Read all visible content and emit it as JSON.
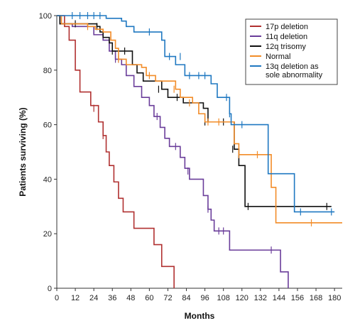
{
  "chart_data": {
    "type": "line",
    "xlabel": "Months",
    "ylabel": "Patients surviving (%)",
    "xlim": [
      0,
      180
    ],
    "ylim": [
      0,
      100
    ],
    "x_ticks": [
      0,
      12,
      24,
      36,
      48,
      60,
      72,
      84,
      96,
      108,
      120,
      132,
      144,
      156,
      168,
      180
    ],
    "y_ticks": [
      0,
      20,
      40,
      60,
      80,
      100
    ],
    "grid": false,
    "legend_position": "top-right",
    "step": true,
    "series": [
      {
        "name": "17p deletion",
        "color": "#b03030",
        "points": [
          [
            0,
            100
          ],
          [
            5,
            96
          ],
          [
            8,
            91
          ],
          [
            12,
            80
          ],
          [
            15,
            72
          ],
          [
            20,
            72
          ],
          [
            22,
            67
          ],
          [
            25,
            67
          ],
          [
            27,
            61
          ],
          [
            30,
            56
          ],
          [
            32,
            50
          ],
          [
            34,
            45
          ],
          [
            37,
            39
          ],
          [
            40,
            33
          ],
          [
            43,
            28
          ],
          [
            50,
            22
          ],
          [
            60,
            22
          ],
          [
            63,
            16
          ],
          [
            68,
            8
          ],
          [
            74,
            8
          ],
          [
            76,
            0
          ]
        ],
        "censored": [
          [
            24,
            66
          ],
          [
            30,
            56
          ]
        ]
      },
      {
        "name": "11q deletion",
        "color": "#6a3d9a",
        "points": [
          [
            0,
            100
          ],
          [
            2,
            97
          ],
          [
            10,
            96
          ],
          [
            20,
            96
          ],
          [
            24,
            93
          ],
          [
            30,
            91
          ],
          [
            34,
            87
          ],
          [
            38,
            84
          ],
          [
            40,
            84
          ],
          [
            42,
            82
          ],
          [
            45,
            78
          ],
          [
            50,
            74
          ],
          [
            55,
            70
          ],
          [
            60,
            67
          ],
          [
            63,
            63
          ],
          [
            67,
            59
          ],
          [
            70,
            55
          ],
          [
            73,
            52
          ],
          [
            77,
            52
          ],
          [
            80,
            48
          ],
          [
            83,
            44
          ],
          [
            86,
            40
          ],
          [
            92,
            40
          ],
          [
            95,
            34
          ],
          [
            98,
            29
          ],
          [
            100,
            25
          ],
          [
            102,
            21
          ],
          [
            108,
            21
          ],
          [
            112,
            14
          ],
          [
            140,
            14
          ],
          [
            145,
            6
          ],
          [
            148,
            6
          ],
          [
            150,
            0
          ]
        ],
        "censored": [
          [
            38,
            84
          ],
          [
            40,
            84
          ],
          [
            65,
            63
          ],
          [
            77,
            52
          ],
          [
            85,
            43
          ],
          [
            98,
            29
          ],
          [
            105,
            21
          ],
          [
            108,
            21
          ],
          [
            139,
            14
          ]
        ]
      },
      {
        "name": "12q trisomy",
        "color": "#111111",
        "points": [
          [
            0,
            100
          ],
          [
            2,
            97
          ],
          [
            12,
            97
          ],
          [
            22,
            97
          ],
          [
            26,
            96
          ],
          [
            28,
            94
          ],
          [
            30,
            92
          ],
          [
            34,
            90
          ],
          [
            36,
            87
          ],
          [
            47,
            87
          ],
          [
            49,
            82
          ],
          [
            52,
            79
          ],
          [
            56,
            76
          ],
          [
            64,
            76
          ],
          [
            68,
            73
          ],
          [
            72,
            70
          ],
          [
            80,
            70
          ],
          [
            82,
            68
          ],
          [
            94,
            68
          ],
          [
            95,
            66
          ],
          [
            98,
            61
          ],
          [
            113,
            61
          ],
          [
            115,
            51
          ],
          [
            118,
            45
          ],
          [
            120,
            45
          ],
          [
            122,
            30
          ],
          [
            178,
            30
          ]
        ],
        "censored": [
          [
            12,
            97
          ],
          [
            26,
            96
          ],
          [
            36,
            87
          ],
          [
            44,
            87
          ],
          [
            66,
            73
          ],
          [
            78,
            70
          ],
          [
            96,
            61
          ],
          [
            108,
            61
          ],
          [
            114,
            51
          ],
          [
            124,
            30
          ],
          [
            175,
            30
          ]
        ]
      },
      {
        "name": "Normal",
        "color": "#f28c28",
        "points": [
          [
            0,
            100
          ],
          [
            3,
            97
          ],
          [
            15,
            97
          ],
          [
            20,
            96
          ],
          [
            25,
            95
          ],
          [
            30,
            94
          ],
          [
            35,
            91
          ],
          [
            38,
            88
          ],
          [
            40,
            84
          ],
          [
            45,
            82
          ],
          [
            55,
            81
          ],
          [
            58,
            78
          ],
          [
            64,
            76
          ],
          [
            75,
            76
          ],
          [
            77,
            73
          ],
          [
            80,
            70
          ],
          [
            88,
            68
          ],
          [
            92,
            64
          ],
          [
            96,
            61
          ],
          [
            108,
            61
          ],
          [
            115,
            53
          ],
          [
            118,
            49
          ],
          [
            135,
            49
          ],
          [
            139,
            37
          ],
          [
            142,
            24
          ],
          [
            185,
            24
          ]
        ],
        "censored": [
          [
            20,
            96
          ],
          [
            40,
            84
          ],
          [
            60,
            78
          ],
          [
            76,
            73
          ],
          [
            86,
            68
          ],
          [
            98,
            61
          ],
          [
            105,
            61
          ],
          [
            118,
            49
          ],
          [
            130,
            49
          ],
          [
            165,
            24
          ]
        ]
      },
      {
        "name": "13q deletion as sole abnormality",
        "color": "#1f78c1",
        "points": [
          [
            0,
            100
          ],
          [
            30,
            100
          ],
          [
            32,
            99
          ],
          [
            40,
            99
          ],
          [
            42,
            98
          ],
          [
            45,
            96
          ],
          [
            50,
            94
          ],
          [
            65,
            94
          ],
          [
            68,
            91
          ],
          [
            70,
            85
          ],
          [
            75,
            85
          ],
          [
            77,
            82
          ],
          [
            83,
            78
          ],
          [
            98,
            78
          ],
          [
            100,
            75
          ],
          [
            104,
            70
          ],
          [
            110,
            70
          ],
          [
            112,
            64
          ],
          [
            113,
            60
          ],
          [
            135,
            60
          ],
          [
            137,
            42
          ],
          [
            152,
            42
          ],
          [
            154,
            28
          ],
          [
            180,
            28
          ]
        ],
        "censored": [
          [
            10,
            100
          ],
          [
            15,
            100
          ],
          [
            20,
            100
          ],
          [
            24,
            100
          ],
          [
            28,
            100
          ],
          [
            60,
            94
          ],
          [
            73,
            85
          ],
          [
            80,
            85
          ],
          [
            86,
            78
          ],
          [
            92,
            78
          ],
          [
            96,
            78
          ],
          [
            110,
            70
          ],
          [
            112,
            64
          ],
          [
            120,
            60
          ],
          [
            158,
            28
          ],
          [
            178,
            28
          ]
        ]
      }
    ]
  }
}
